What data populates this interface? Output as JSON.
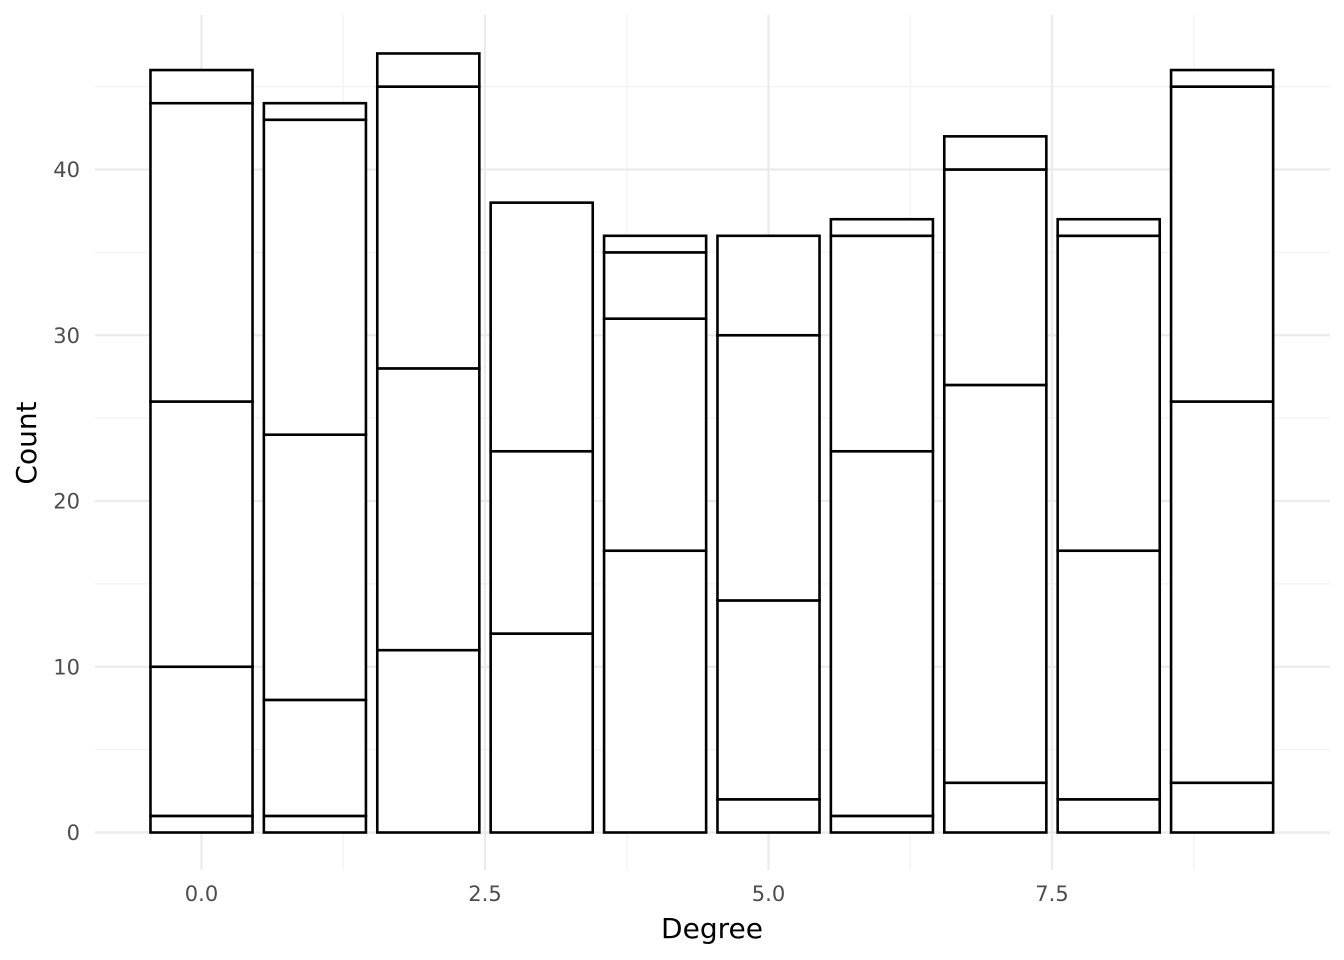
{
  "chart_data": {
    "type": "bar",
    "stacked": true,
    "title": "",
    "xlabel": "Degree",
    "ylabel": "Count",
    "xlim": [
      -0.5,
      9.5
    ],
    "ylim": [
      0,
      47
    ],
    "x_ticks": [
      0,
      2.5,
      5,
      7.5
    ],
    "x_tick_labels": [
      "0.0",
      "2.5",
      "5.0",
      "7.5"
    ],
    "y_ticks": [
      0,
      10,
      20,
      30,
      40
    ],
    "y_tick_labels": [
      "0",
      "10",
      "20",
      "30",
      "40"
    ],
    "grid": true,
    "legend": "none",
    "bar_fill": "#ffffff",
    "bar_outline": "#000000",
    "x": [
      0,
      1,
      2,
      3,
      4,
      5,
      6,
      7,
      8,
      9
    ],
    "stack_boundaries": [
      [
        0,
        1,
        10,
        26,
        44,
        46
      ],
      [
        0,
        1,
        8,
        24,
        43,
        44
      ],
      [
        0,
        11,
        28,
        45,
        47
      ],
      [
        0,
        12,
        23,
        38
      ],
      [
        0,
        17,
        31,
        35,
        36
      ],
      [
        0,
        2,
        14,
        30,
        36
      ],
      [
        0,
        1,
        23,
        36,
        37
      ],
      [
        0,
        3,
        27,
        40,
        42
      ],
      [
        0,
        2,
        17,
        36,
        37
      ],
      [
        0,
        3,
        26,
        45,
        46
      ]
    ]
  }
}
